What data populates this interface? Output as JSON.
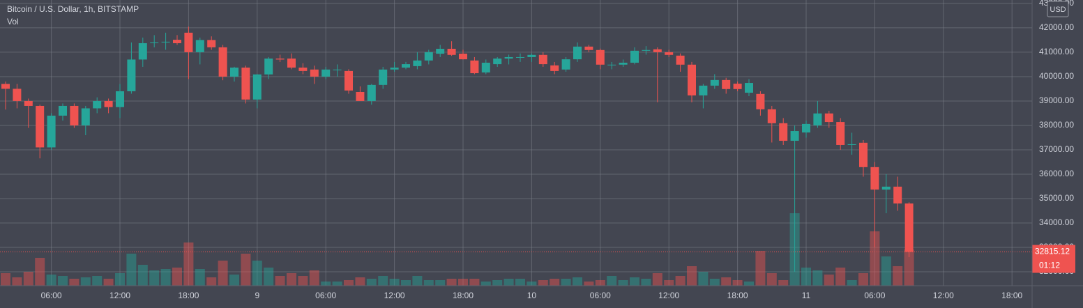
{
  "chart_data": {
    "type": "candlestick",
    "title": "Bitcoin / U.S. Dollar, 1h, BITSTAMP",
    "volume_label": "Vol",
    "currency": "USD",
    "last_price": 32815.12,
    "countdown": "01:12",
    "up_color": "#26a69a",
    "down_color": "#ef5350",
    "grid": true,
    "categories": [
      null,
      null,
      null,
      null,
      "06:00",
      null,
      null,
      null,
      null,
      null,
      "12:00",
      null,
      null,
      null,
      null,
      null,
      "18:00",
      null,
      null,
      null,
      null,
      null,
      "9",
      null,
      null,
      null,
      null,
      null,
      "06:00",
      null,
      null,
      null,
      null,
      null,
      "12:00",
      null,
      null,
      null,
      null,
      null,
      "18:00",
      null,
      null,
      null,
      null,
      null,
      "10",
      null,
      null,
      null,
      null,
      null,
      "06:00",
      null,
      null,
      null,
      null,
      null,
      "12:00",
      null,
      null,
      null,
      null,
      null,
      "18:00",
      null,
      null,
      null,
      null,
      null,
      "11",
      null,
      null,
      null,
      null,
      null,
      "06:00",
      null,
      null,
      null,
      null,
      null,
      "12:00",
      null,
      null,
      null,
      null,
      null,
      "18:00",
      null
    ],
    "open": [
      39700,
      39500,
      39000,
      38800,
      37100,
      38400,
      38800,
      38000,
      38700,
      39000,
      38750,
      39400,
      40700,
      41370,
      41400,
      41510,
      41800,
      41000,
      41500,
      41200,
      40000,
      40370,
      39060,
      40090,
      40740,
      40740,
      40370,
      40290,
      40000,
      40290,
      40230,
      39370,
      39000,
      39660,
      40290,
      40370,
      40430,
      40660,
      40940,
      41140,
      40940,
      40660,
      40170,
      40510,
      40740,
      40800,
      40800,
      40890,
      40460,
      40290,
      40710,
      41230,
      41090,
      40490,
      40490,
      40570,
      41060,
      41120,
      41000,
      40860,
      40490,
      39230,
      39630,
      39860,
      39710,
      39340,
      39290,
      38660,
      38090,
      37370,
      37710,
      38000,
      38490,
      38140,
      37230,
      37290,
      36290,
      35370,
      35490,
      34800,
      null,
      null,
      null,
      null,
      null,
      null,
      null,
      null,
      null,
      null
    ],
    "high": [
      39800,
      39700,
      39100,
      38850,
      38500,
      38900,
      38900,
      38800,
      39150,
      39100,
      39700,
      41400,
      41600,
      41700,
      41800,
      41700,
      42050,
      41600,
      41650,
      41300,
      40400,
      40450,
      40100,
      40800,
      40900,
      40950,
      40550,
      40450,
      40400,
      40500,
      40300,
      39600,
      39700,
      40400,
      40600,
      40600,
      41000,
      41100,
      41300,
      41450,
      41100,
      40800,
      40700,
      40800,
      40900,
      40950,
      40950,
      41000,
      40600,
      40800,
      41400,
      41300,
      41150,
      40600,
      40700,
      41200,
      41250,
      41200,
      41100,
      40950,
      40600,
      39700,
      40100,
      39950,
      39800,
      39900,
      39400,
      38800,
      38300,
      38000,
      38200,
      39000,
      38600,
      38300,
      37700,
      37400,
      36500,
      36000,
      35900,
      34850,
      null,
      null,
      null,
      null,
      null,
      null,
      null,
      null,
      null,
      null
    ],
    "low": [
      38650,
      38700,
      37900,
      36650,
      37000,
      38200,
      37900,
      37600,
      38500,
      38500,
      38300,
      39300,
      40400,
      41200,
      41100,
      41300,
      39900,
      40500,
      41100,
      39850,
      39800,
      38900,
      38700,
      39900,
      40600,
      40300,
      40100,
      39700,
      39900,
      40000,
      39300,
      39000,
      38850,
      39500,
      40200,
      40300,
      40300,
      40500,
      40800,
      40850,
      40700,
      40100,
      40100,
      40400,
      40500,
      40600,
      40600,
      40400,
      40100,
      40200,
      40600,
      41000,
      40300,
      40300,
      40400,
      40500,
      40900,
      38950,
      40800,
      40200,
      38950,
      38700,
      39500,
      39300,
      39400,
      39200,
      38400,
      37300,
      37200,
      32000,
      37500,
      37900,
      37900,
      37000,
      36800,
      35900,
      33000,
      34400,
      34500,
      32600,
      null,
      null,
      null,
      null,
      null,
      null,
      null,
      null,
      null,
      null
    ],
    "close": [
      39500,
      39000,
      38800,
      37100,
      38400,
      38800,
      38000,
      38700,
      39000,
      38750,
      39400,
      40700,
      41370,
      41400,
      41430,
      41370,
      41000,
      41500,
      41200,
      40000,
      40370,
      39060,
      40090,
      40740,
      40700,
      40370,
      40230,
      40000,
      40290,
      40290,
      39430,
      39000,
      39660,
      40290,
      40370,
      40510,
      40660,
      41000,
      41140,
      40890,
      40710,
      40140,
      40570,
      40740,
      40800,
      40800,
      40890,
      40510,
      40230,
      40710,
      41230,
      41090,
      40490,
      40490,
      40570,
      41060,
      41090,
      41000,
      40890,
      40490,
      39230,
      39630,
      39860,
      39490,
      39490,
      39740,
      38660,
      38090,
      37370,
      37770,
      38060,
      38490,
      38140,
      37200,
      37230,
      36290,
      35370,
      35490,
      34800,
      32815.12,
      null,
      null,
      null,
      null,
      null,
      null,
      null,
      null,
      null,
      null
    ],
    "volume": [
      18,
      12,
      20,
      40,
      16,
      14,
      10,
      12,
      14,
      10,
      18,
      46,
      30,
      22,
      24,
      26,
      62,
      24,
      12,
      36,
      16,
      46,
      36,
      26,
      14,
      18,
      14,
      22,
      6,
      6,
      8,
      12,
      10,
      14,
      10,
      8,
      14,
      8,
      8,
      10,
      10,
      10,
      6,
      8,
      10,
      10,
      6,
      8,
      10,
      10,
      12,
      6,
      8,
      14,
      8,
      12,
      10,
      18,
      8,
      14,
      28,
      20,
      10,
      12,
      8,
      6,
      50,
      18,
      8,
      104,
      26,
      22,
      16,
      26,
      8,
      18,
      78,
      42,
      28,
      52,
      null,
      null,
      null,
      null,
      null,
      null,
      null,
      null,
      null,
      null
    ],
    "ylim": [
      31430,
      43140
    ],
    "yticks": [
      {
        "value": 32000,
        "label": "32000.00"
      },
      {
        "value": 33000,
        "label": "33000.00"
      },
      {
        "value": 34000,
        "label": "34000.00"
      },
      {
        "value": 35000,
        "label": "35000.00"
      },
      {
        "value": 36000,
        "label": "36000.00"
      },
      {
        "value": 37000,
        "label": "37000.00"
      },
      {
        "value": 38000,
        "label": "38000.00"
      },
      {
        "value": 39000,
        "label": "39000.00"
      },
      {
        "value": 40000,
        "label": "40000.00"
      },
      {
        "value": 41000,
        "label": "41000.00"
      },
      {
        "value": 42000,
        "label": "42000.00"
      },
      {
        "value": 43000,
        "label": "43000.00"
      }
    ]
  }
}
